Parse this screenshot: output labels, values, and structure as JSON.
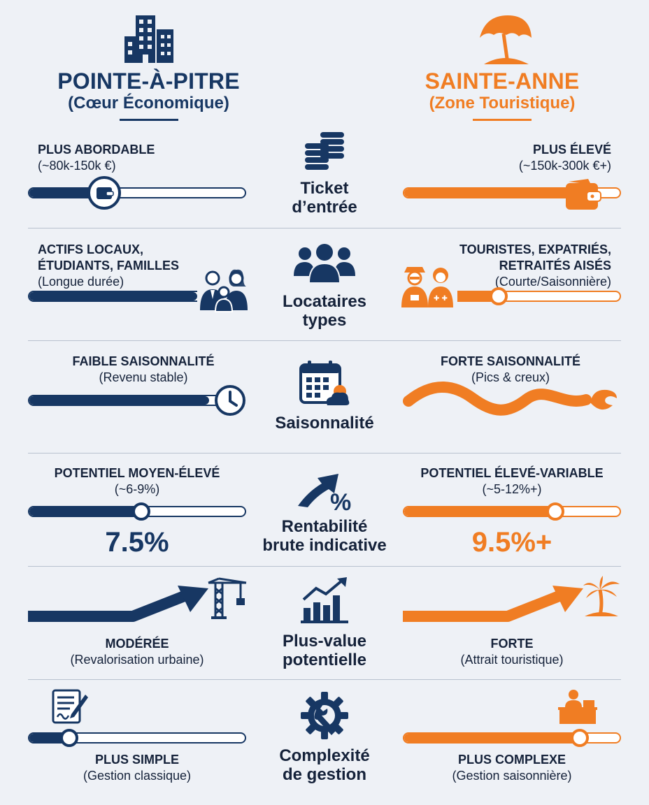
{
  "left": {
    "city": "POINTE-À-PITRE",
    "subtitle": "(Cœur Économique)",
    "color": "#173763",
    "icon": "city-buildings-icon"
  },
  "right": {
    "city": "SAINTE-ANNE",
    "subtitle": "(Zone Touristique)",
    "color": "#f07d23",
    "icon": "beach-umbrella-icon"
  },
  "rows": [
    {
      "category": [
        "Ticket",
        "d’entrée"
      ],
      "center_icon": "coins-stack-icon",
      "left": {
        "label": "PLUS ABORDABLE",
        "note": "(~80k-150k €)",
        "level": 0.35,
        "icon": "wallet-icon"
      },
      "right": {
        "label": "PLUS ÉLEVÉ",
        "note": "(~150k-300k €+)",
        "level": 0.82,
        "icon": "wallet-icon"
      }
    },
    {
      "category": [
        "Locataires",
        "types"
      ],
      "center_icon": "people-group-icon",
      "left": {
        "label_lines": [
          "ACTIFS LOCAUX,",
          "ÉTUDIANTS, FAMILLES"
        ],
        "note": "(Longue durée)",
        "level": 0.78,
        "icon": "family-icon"
      },
      "right": {
        "label_lines": [
          "TOURISTES, EXPATRIÉS,",
          "RETRAITÉS AISÉS"
        ],
        "note": "(Courte/Saisonnière)",
        "level": 0.44,
        "icon": "tourists-icon"
      }
    },
    {
      "category": [
        "Saisonnalité"
      ],
      "center_icon": "calendar-weather-icon",
      "left": {
        "label": "FAIBLE SAISONNALITÉ",
        "note": "(Revenu stable)",
        "level": 0.9,
        "icon": "clock-icon"
      },
      "right": {
        "label": "FORTE SAISONNALITÉ",
        "note": "(Pics & creux)",
        "icon": "wave-icon"
      }
    },
    {
      "category": [
        "Rentabilité",
        "brute indicative"
      ],
      "center_icon": "percent-arrow-icon",
      "left": {
        "label": "POTENTIEL MOYEN-ÉLEVÉ",
        "note": "(~6-9%)",
        "level": 0.52,
        "value": "7.5%"
      },
      "right": {
        "label": "POTENTIEL ÉLEVÉ-VARIABLE",
        "note": "(~5-12%+)",
        "level": 0.7,
        "value": "9.5%+"
      }
    },
    {
      "category": [
        "Plus-value",
        "potentielle"
      ],
      "center_icon": "bar-chart-growth-icon",
      "left": {
        "label": "MODÉRÉE",
        "note": "(Revalorisation urbaine)",
        "icon": "construction-crane-icon"
      },
      "right": {
        "label": "FORTE",
        "note": "(Attrait touristique)",
        "icon": "palm-tree-icon"
      }
    },
    {
      "category": [
        "Complexité",
        "de gestion"
      ],
      "center_icon": "gear-wrench-icon",
      "left": {
        "label": "PLUS SIMPLE",
        "note": "(Gestion classique)",
        "level": 0.19,
        "icon": "contract-document-icon"
      },
      "right": {
        "label": "PLUS COMPLEXE",
        "note": "(Gestion saisonnière)",
        "level": 0.81,
        "icon": "reception-desk-icon"
      }
    }
  ]
}
